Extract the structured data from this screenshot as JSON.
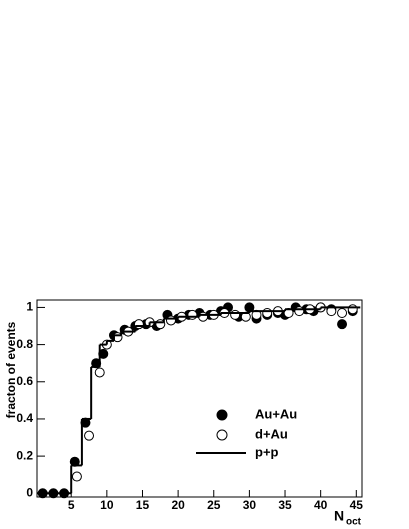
{
  "chart_data": {
    "type": "scatter",
    "ylabel": "fracton of events",
    "xlabel": "N",
    "xlabel_subscript": "oct",
    "xlim": [
      0.2,
      45.8
    ],
    "xticks": [
      5,
      10,
      15,
      20,
      25,
      30,
      35,
      40,
      45
    ],
    "ylim": [
      -0.02,
      1.04
    ],
    "yticks": [
      0,
      0.2,
      0.4,
      0.6,
      0.8,
      1
    ],
    "series": [
      {
        "name": "Au+Au",
        "marker": "filled",
        "color": "#000000",
        "x": [
          1,
          2.5,
          4,
          5.5,
          7,
          8.5,
          9.5,
          11,
          12.5,
          14,
          15.5,
          17,
          18.5,
          20,
          21.5,
          23,
          24.5,
          26,
          27,
          28.5,
          30,
          31,
          32.5,
          34,
          35,
          36.5,
          38,
          39,
          40,
          41.5,
          43,
          44.5
        ],
        "values": [
          0,
          0,
          0,
          0.17,
          0.38,
          0.7,
          0.75,
          0.85,
          0.88,
          0.9,
          0.91,
          0.9,
          0.96,
          0.94,
          0.96,
          0.97,
          0.96,
          0.98,
          1.0,
          0.95,
          1.0,
          0.94,
          0.96,
          0.97,
          0.96,
          1.0,
          0.99,
          0.98,
          1.0,
          0.99,
          0.91,
          0.98
        ]
      },
      {
        "name": "d+Au",
        "marker": "open",
        "color": "#000000",
        "x": [
          5.8,
          7.5,
          9,
          10,
          11.5,
          13,
          14.5,
          16,
          17.5,
          19,
          20.5,
          22,
          23.5,
          25,
          26.5,
          28,
          29.5,
          31,
          32.5,
          34,
          35.5,
          37,
          38.5,
          40,
          41.5,
          43,
          44.5
        ],
        "values": [
          0.09,
          0.31,
          0.65,
          0.8,
          0.84,
          0.87,
          0.91,
          0.92,
          0.91,
          0.93,
          0.95,
          0.96,
          0.95,
          0.96,
          0.97,
          0.96,
          0.95,
          0.96,
          0.97,
          0.98,
          0.97,
          0.98,
          0.99,
          1.0,
          0.98,
          0.97,
          0.99
        ]
      },
      {
        "name": "p+p",
        "marker": "line",
        "drawstyle": "steps-post",
        "color": "#000000",
        "x": [
          0.2,
          5,
          6.5,
          7.8,
          9,
          10,
          11,
          12,
          14,
          16,
          18,
          20,
          23,
          26,
          30,
          35,
          40,
          45
        ],
        "values": [
          0,
          0.15,
          0.4,
          0.68,
          0.8,
          0.82,
          0.85,
          0.87,
          0.9,
          0.92,
          0.94,
          0.95,
          0.96,
          0.97,
          0.98,
          0.99,
          1.0,
          1.0
        ]
      }
    ]
  }
}
